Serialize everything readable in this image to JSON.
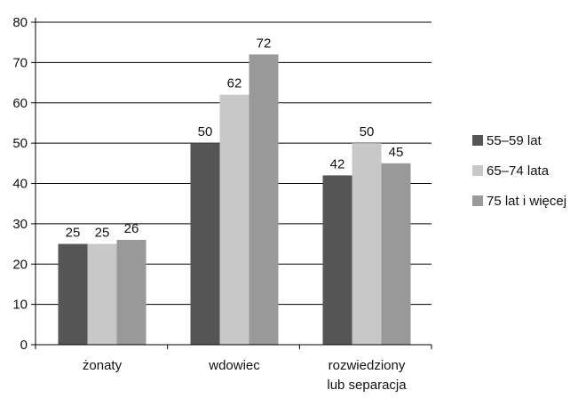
{
  "chart_data": {
    "type": "bar",
    "title": "",
    "xlabel": "",
    "ylabel": "",
    "categories": [
      [
        "żonaty"
      ],
      [
        "wdowiec"
      ],
      [
        "rozwiedziony",
        "lub separacja"
      ]
    ],
    "series": [
      {
        "name": "55–59 lat",
        "values": [
          25,
          50,
          42
        ],
        "color": "#555555"
      },
      {
        "name": "65–74 lata",
        "values": [
          25,
          62,
          50
        ],
        "color": "#c8c8c8"
      },
      {
        "name": "75 lat i więcej",
        "values": [
          26,
          72,
          45
        ],
        "color": "#999999"
      }
    ],
    "ylim": [
      0,
      80
    ],
    "yticks": [
      0,
      10,
      20,
      30,
      40,
      50,
      60,
      70,
      80
    ],
    "grid": true,
    "legend": "right"
  }
}
